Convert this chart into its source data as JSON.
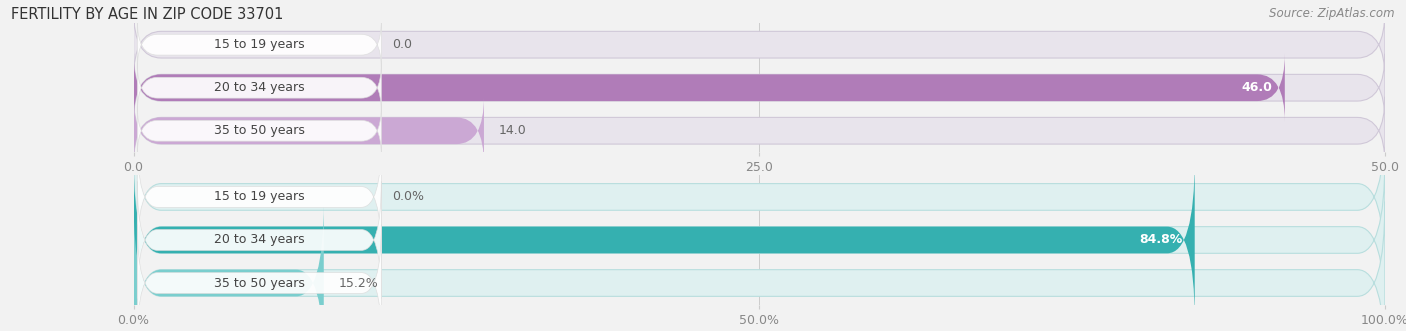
{
  "title": "FERTILITY BY AGE IN ZIP CODE 33701",
  "source": "Source: ZipAtlas.com",
  "top_chart": {
    "categories": [
      "15 to 19 years",
      "20 to 34 years",
      "35 to 50 years"
    ],
    "values": [
      0.0,
      46.0,
      14.0
    ],
    "max_val": 50.0,
    "xticks": [
      0.0,
      25.0,
      50.0
    ],
    "xtick_labels": [
      "0.0",
      "25.0",
      "50.0"
    ],
    "bar_color": "#b07cb8",
    "bar_color_light": "#cba8d4",
    "bar_bg_color": "#e8e4ec",
    "bar_border_color": "#d0c8d8"
  },
  "bottom_chart": {
    "categories": [
      "15 to 19 years",
      "20 to 34 years",
      "35 to 50 years"
    ],
    "values": [
      0.0,
      84.8,
      15.2
    ],
    "max_val": 100.0,
    "xticks": [
      0.0,
      50.0,
      100.0
    ],
    "xtick_labels": [
      "0.0%",
      "50.0%",
      "100.0%"
    ],
    "bar_color": "#35b0b0",
    "bar_color_light": "#7acece",
    "bar_bg_color": "#dff0f0",
    "bar_border_color": "#b8dede"
  },
  "bg_color": "#f2f2f2",
  "title_font_size": 10.5,
  "source_font_size": 8.5,
  "tick_font_size": 9,
  "category_font_size": 9,
  "value_font_size": 9
}
